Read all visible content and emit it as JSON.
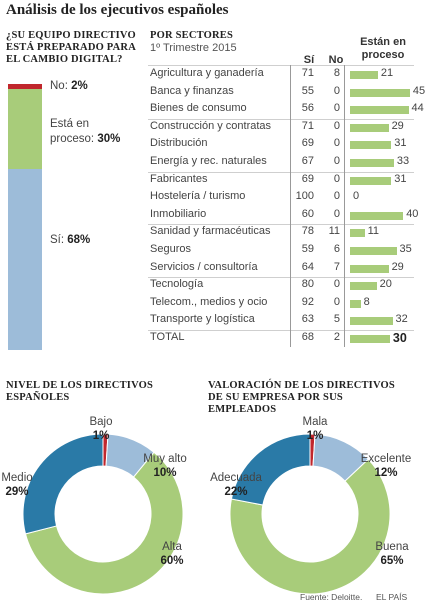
{
  "title": "Análisis de los ejecutivos españoles",
  "left_panel": {
    "heading": "¿SU EQUIPO DIRECTIVO\nESTÁ PREPARADO PARA\nEL CAMBIO DIGITAL?",
    "segments": [
      {
        "label": "No:",
        "value": "2%",
        "color": "#c0272d"
      },
      {
        "label": "Está en proceso:",
        "value": "30%",
        "color": "#a8cc7a"
      },
      {
        "label": "Sí:",
        "value": "68%",
        "color": "#9dbcd9"
      }
    ]
  },
  "sectors_panel": {
    "heading": "POR SECTORES",
    "subtitle": "1º Trimestre 2015",
    "col_si": "Sí",
    "col_no": "No",
    "col_proceso": "Están en proceso",
    "bar_color": "#a8cc7a"
  },
  "footer": {
    "source": "Fuente: Deloitte.",
    "brand": "EL PAÍS"
  },
  "chart_data": [
    {
      "type": "bar",
      "orientation": "stacked-vertical",
      "title": "¿SU EQUIPO DIRECTIVO ESTÁ PREPARADO PARA EL CAMBIO DIGITAL?",
      "categories": [
        "No",
        "Está en proceso",
        "Sí"
      ],
      "values": [
        2,
        30,
        68
      ],
      "unit": "%"
    },
    {
      "type": "table",
      "title": "POR SECTORES",
      "subtitle": "1º Trimestre 2015",
      "columns": [
        "Sí",
        "No",
        "Están en proceso"
      ],
      "rows": [
        {
          "sector": "Agricultura y ganadería",
          "si": 71,
          "no": 8,
          "proceso": 21,
          "group": 1
        },
        {
          "sector": "Banca y finanzas",
          "si": 55,
          "no": 0,
          "proceso": 45,
          "group": 1
        },
        {
          "sector": "Bienes de consumo",
          "si": 56,
          "no": 0,
          "proceso": 44,
          "group": 1
        },
        {
          "sector": "Construcción y contratas",
          "si": 71,
          "no": 0,
          "proceso": 29,
          "group": 2
        },
        {
          "sector": "Distribución",
          "si": 69,
          "no": 0,
          "proceso": 31,
          "group": 2
        },
        {
          "sector": "Energía y rec. naturales",
          "si": 67,
          "no": 0,
          "proceso": 33,
          "group": 2
        },
        {
          "sector": "Fabricantes",
          "si": 69,
          "no": 0,
          "proceso": 31,
          "group": 3
        },
        {
          "sector": "Hostelería / turismo",
          "si": 100,
          "no": 0,
          "proceso": 0,
          "group": 3
        },
        {
          "sector": "Inmobiliario",
          "si": 60,
          "no": 0,
          "proceso": 40,
          "group": 3
        },
        {
          "sector": "Sanidad y farmacéuticas",
          "si": 78,
          "no": 11,
          "proceso": 11,
          "group": 4
        },
        {
          "sector": "Seguros",
          "si": 59,
          "no": 6,
          "proceso": 35,
          "group": 4
        },
        {
          "sector": "Servicios / consultoría",
          "si": 64,
          "no": 7,
          "proceso": 29,
          "group": 4
        },
        {
          "sector": "Tecnología",
          "si": 80,
          "no": 0,
          "proceso": 20,
          "group": 5
        },
        {
          "sector": "Telecom., medios y ocio",
          "si": 92,
          "no": 0,
          "proceso": 8,
          "group": 5
        },
        {
          "sector": "Transporte y logística",
          "si": 63,
          "no": 5,
          "proceso": 32,
          "group": 5
        }
      ],
      "total": {
        "sector": "TOTAL",
        "si": 68,
        "no": 2,
        "proceso": 30
      }
    },
    {
      "type": "pie",
      "style": "donut",
      "title": "NIVEL DE LOS DIRECTIVOS\nESPAÑOLES",
      "slices": [
        {
          "label": "Bajo",
          "value": 1,
          "display": "1%",
          "color": "#c0272d"
        },
        {
          "label": "Muy alto",
          "value": 10,
          "display": "10%",
          "color": "#9dbcd9"
        },
        {
          "label": "Alta",
          "value": 60,
          "display": "60%",
          "color": "#a8cc7a"
        },
        {
          "label": "Medio",
          "value": 29,
          "display": "29%",
          "color": "#2a7aa7"
        }
      ]
    },
    {
      "type": "pie",
      "style": "donut",
      "title": "VALORACIÓN DE LOS DIRECTIVOS\nDE SU EMPRESA POR SUS EMPLEADOS",
      "slices": [
        {
          "label": "Mala",
          "value": 1,
          "display": "1%",
          "color": "#c0272d"
        },
        {
          "label": "Excelente",
          "value": 12,
          "display": "12%",
          "color": "#9dbcd9"
        },
        {
          "label": "Buena",
          "value": 65,
          "display": "65%",
          "color": "#a8cc7a"
        },
        {
          "label": "Adecuada",
          "value": 22,
          "display": "22%",
          "color": "#2a7aa7"
        }
      ]
    }
  ]
}
